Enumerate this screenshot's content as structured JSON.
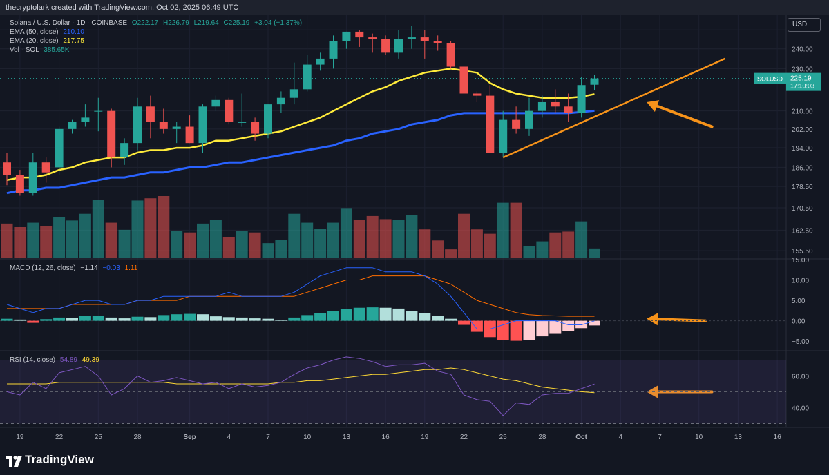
{
  "header": {
    "credit": "thecryptolark created with TradingView.com, Oct 02, 2025 06:49 UTC"
  },
  "legend": {
    "symbol": "Solana / U.S. Dollar · 1D · COINBASE",
    "ohlc": {
      "o": "O222.17",
      "h": "H226.79",
      "l": "L219.64",
      "c": "C225.19",
      "chg": "+3.04 (+1.37%)"
    },
    "ema50": {
      "label": "EMA (50, close)",
      "value": "210.10",
      "color": "#2962ff"
    },
    "ema20": {
      "label": "EMA (20, close)",
      "value": "217.75",
      "color": "#ffeb3b"
    },
    "vol": {
      "label": "Vol · SOL",
      "value": "385.65K"
    },
    "macd": {
      "label": "MACD (12, 26, close)",
      "hist": "−1.14",
      "macd": "−0.03",
      "signal": "1.11"
    },
    "rsi": {
      "label": "RSI (14, close)",
      "rsi": "54.89",
      "ma": "49.39"
    }
  },
  "currency_button": "USD",
  "price_tag": {
    "symbol": "SOLUSD",
    "price": "225.19",
    "countdown": "17:10:03"
  },
  "footer": {
    "brand": "TradingView"
  },
  "colors": {
    "up": "#26a69a",
    "down": "#ef5350",
    "macd_line": "#2962ff",
    "signal_line": "#ff6d00",
    "rsi_line": "#7e57c2",
    "rsi_ma": "#fdd835",
    "annotation": "#f7931a"
  },
  "chart_data": {
    "type": "candlestick",
    "dates": [
      "Aug 18",
      "Aug 19",
      "Aug 20",
      "Aug 21",
      "Aug 22",
      "Aug 23",
      "Aug 24",
      "Aug 25",
      "Aug 26",
      "Aug 27",
      "Aug 28",
      "Aug 29",
      "Aug 30",
      "Aug 31",
      "Sep 1",
      "Sep 2",
      "Sep 3",
      "Sep 4",
      "Sep 5",
      "Sep 6",
      "Sep 7",
      "Sep 8",
      "Sep 9",
      "Sep 10",
      "Sep 11",
      "Sep 12",
      "Sep 13",
      "Sep 14",
      "Sep 15",
      "Sep 16",
      "Sep 17",
      "Sep 18",
      "Sep 19",
      "Sep 20",
      "Sep 21",
      "Sep 22",
      "Sep 23",
      "Sep 24",
      "Sep 25",
      "Sep 26",
      "Sep 27",
      "Sep 28",
      "Sep 29",
      "Sep 30",
      "Oct 1",
      "Oct 2"
    ],
    "open": [
      188,
      183,
      176,
      188,
      186,
      202,
      205,
      210,
      210,
      190,
      196,
      212,
      205,
      202,
      203,
      196,
      212,
      215,
      205,
      205,
      200,
      213,
      216,
      220,
      232,
      235,
      244,
      249,
      246,
      245,
      238,
      245,
      246,
      244,
      243,
      231,
      218,
      217,
      192,
      206,
      202,
      210,
      214,
      212,
      209,
      222.17
    ],
    "high": [
      192,
      185,
      192,
      190,
      203,
      206,
      213,
      216,
      211,
      198,
      216,
      217,
      211,
      205,
      208,
      213,
      217,
      216,
      218,
      207,
      213,
      219,
      233,
      237,
      238,
      247,
      249,
      250,
      248,
      247,
      250,
      252,
      250,
      247,
      244,
      241,
      219,
      222,
      210,
      212,
      216,
      217,
      220,
      218,
      226,
      226.79
    ],
    "low": [
      179,
      175,
      175,
      180,
      183,
      200,
      203,
      201,
      186,
      187,
      193,
      198,
      200,
      196,
      196,
      192,
      210,
      204,
      203,
      197,
      198,
      209,
      213,
      219,
      229,
      230,
      240,
      241,
      238,
      237,
      235,
      240,
      235,
      239,
      230,
      216,
      214,
      192,
      190,
      200,
      199,
      207,
      209,
      205,
      207,
      219.64
    ],
    "close": [
      183,
      176,
      188,
      184,
      202,
      205,
      207,
      210,
      190,
      196,
      212,
      205,
      202,
      203,
      196,
      212,
      215,
      205,
      205,
      200,
      213,
      216,
      220,
      232,
      235,
      244,
      249,
      246,
      245,
      238,
      245,
      246,
      244,
      243,
      231,
      218,
      217,
      192,
      206,
      202,
      210,
      214,
      212,
      209,
      222,
      225.19
    ],
    "ema20": [
      181,
      182,
      182,
      183,
      185,
      186,
      188,
      189,
      190,
      190,
      192,
      193,
      193,
      194,
      194,
      195,
      197,
      197,
      198,
      199,
      200,
      201,
      203,
      205,
      207,
      210,
      213,
      216,
      219,
      221,
      224,
      226,
      228,
      229,
      230,
      229,
      228,
      223,
      220,
      218,
      217,
      216,
      216,
      216,
      216.5,
      217.75
    ],
    "ema50": [
      176,
      177,
      177,
      178,
      178,
      179,
      180,
      181,
      182,
      182,
      183,
      184,
      184,
      185,
      186,
      186,
      187,
      188,
      188,
      189,
      190,
      191,
      192,
      193,
      194,
      195,
      197,
      198,
      200,
      201,
      202,
      204,
      205,
      206,
      208,
      209,
      209,
      209,
      209,
      209,
      209,
      209,
      209,
      209,
      209.5,
      210.1
    ],
    "volume": [
      78,
      70,
      80,
      72,
      92,
      85,
      100,
      132,
      80,
      64,
      130,
      135,
      140,
      62,
      58,
      78,
      86,
      48,
      62,
      58,
      34,
      42,
      100,
      80,
      66,
      80,
      113,
      86,
      95,
      88,
      86,
      98,
      65,
      40,
      20,
      100,
      65,
      55,
      125,
      125,
      28,
      38,
      58,
      60,
      83,
      22
    ],
    "macd": [
      4,
      3,
      2,
      3,
      3,
      4,
      5,
      5,
      4,
      4,
      5,
      5,
      6,
      6,
      6,
      6,
      6,
      7,
      6,
      6,
      6,
      6,
      7,
      9,
      11,
      12,
      13,
      13,
      13,
      12,
      12,
      12,
      11,
      9,
      6,
      2,
      -2,
      -2,
      -1,
      0,
      0,
      0,
      0,
      -1,
      -1,
      -0.03
    ],
    "signal": [
      3,
      3,
      3,
      3,
      3,
      4,
      4,
      4,
      4,
      4,
      5,
      5,
      5,
      5,
      6,
      6,
      6,
      6,
      6,
      6,
      6,
      6,
      6,
      7,
      8,
      9,
      10,
      10,
      11,
      11,
      11,
      11,
      11,
      10,
      9,
      7,
      5,
      4,
      3,
      2,
      1.5,
      1.3,
      1.2,
      1.1,
      1.1,
      1.11
    ],
    "hist": [
      0.5,
      0.3,
      -0.5,
      0.4,
      0.8,
      0.7,
      1.2,
      1.2,
      0.8,
      0.6,
      1.0,
      0.9,
      1.4,
      1.6,
      1.7,
      1.6,
      1.1,
      0.9,
      0.8,
      0.6,
      0.5,
      0.2,
      0.8,
      1.4,
      1.9,
      2.4,
      2.9,
      3.2,
      3.3,
      3.2,
      3.0,
      2.4,
      1.9,
      1.2,
      0.5,
      -1.0,
      -2.7,
      -4.0,
      -4.8,
      -4.9,
      -4.7,
      -3.8,
      -3.2,
      -2.6,
      -1.8,
      -1.14
    ],
    "rsi": [
      50,
      48,
      56,
      52,
      62,
      64,
      66,
      60,
      48,
      52,
      60,
      56,
      57,
      59,
      57,
      55,
      56,
      52,
      55,
      53,
      54,
      56,
      61,
      65,
      67,
      70,
      72,
      71,
      69,
      66,
      67,
      67,
      68,
      63,
      61,
      48,
      45,
      44,
      35,
      43,
      42,
      48,
      49,
      49,
      52,
      54.89
    ],
    "rsi_ma": [
      55,
      55,
      55,
      55,
      56,
      56,
      56,
      56,
      56,
      56,
      56,
      56,
      56,
      55,
      55,
      55,
      55,
      55,
      55,
      55,
      55,
      56,
      56,
      57,
      57,
      58,
      59,
      60,
      61,
      61,
      62,
      63,
      64,
      64,
      65,
      64,
      62,
      60,
      58,
      57,
      55,
      53,
      52,
      51,
      50,
      49.39
    ],
    "price_axis": {
      "ylim": [
        153,
        258
      ],
      "ticks": [
        "250.00",
        "240.00",
        "230.00",
        "210.00",
        "202.00",
        "194.00",
        "186.00",
        "178.50",
        "170.50",
        "162.50",
        "155.50"
      ],
      "tick_values": [
        250,
        240,
        230,
        210,
        202,
        194,
        186,
        178.5,
        170.5,
        162.5,
        155.5
      ],
      "scale": "log"
    },
    "macd_axis": {
      "ticks": [
        "15.00",
        "10.00",
        "5.00",
        "0.00",
        "−5.00"
      ],
      "tick_values": [
        15,
        10,
        5,
        0,
        -5
      ],
      "ylim": [
        -7,
        15
      ]
    },
    "rsi_axis": {
      "ticks": [
        "60.00",
        "40.00"
      ],
      "tick_values": [
        60,
        40
      ],
      "ylim": [
        28,
        75
      ],
      "bands": [
        70,
        30
      ]
    },
    "x_ticks": [
      {
        "label": "19",
        "idx": 1,
        "bold": false
      },
      {
        "label": "22",
        "idx": 4,
        "bold": false
      },
      {
        "label": "25",
        "idx": 7,
        "bold": false
      },
      {
        "label": "28",
        "idx": 10,
        "bold": false
      },
      {
        "label": "Sep",
        "idx": 14,
        "bold": true
      },
      {
        "label": "4",
        "idx": 17,
        "bold": false
      },
      {
        "label": "7",
        "idx": 20,
        "bold": false
      },
      {
        "label": "10",
        "idx": 23,
        "bold": false
      },
      {
        "label": "13",
        "idx": 26,
        "bold": false
      },
      {
        "label": "16",
        "idx": 29,
        "bold": false
      },
      {
        "label": "19",
        "idx": 32,
        "bold": false
      },
      {
        "label": "22",
        "idx": 35,
        "bold": false
      },
      {
        "label": "25",
        "idx": 38,
        "bold": false
      },
      {
        "label": "28",
        "idx": 41,
        "bold": false
      },
      {
        "label": "Oct",
        "idx": 44,
        "bold": true
      },
      {
        "label": "4",
        "idx": 47,
        "bold": false
      },
      {
        "label": "7",
        "idx": 50,
        "bold": false
      },
      {
        "label": "10",
        "idx": 53,
        "bold": false
      },
      {
        "label": "13",
        "idx": 56,
        "bold": false
      },
      {
        "label": "16",
        "idx": 59,
        "bold": false
      }
    ],
    "trendline": {
      "from": {
        "idx": 38,
        "price": 190
      },
      "to": {
        "idx": 55,
        "price": 235
      }
    },
    "arrows": [
      {
        "pane": "price",
        "tip_idx": 49,
        "tip_price": 214,
        "tail_idx": 54,
        "tail_price": 203
      },
      {
        "pane": "macd",
        "tip_idx": 49,
        "tip_value": 0.5,
        "tail_idx": 53.5,
        "tail_value": 0
      },
      {
        "pane": "rsi",
        "tip_idx": 49,
        "tip_value": 50,
        "tail_idx": 54,
        "tail_value": 50
      }
    ]
  }
}
